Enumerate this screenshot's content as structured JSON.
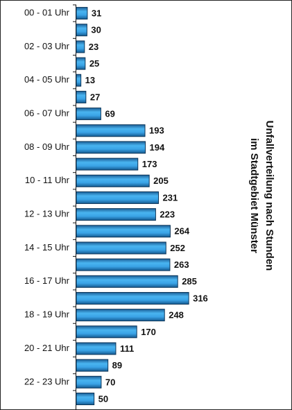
{
  "chart_data": {
    "type": "hbar",
    "title": "Unfallverteilung nach Stunden",
    "subtitle": "im Stadtgebiet Münster",
    "categories": [
      "00 - 01 Uhr",
      null,
      "02 - 03 Uhr",
      null,
      "04 - 05 Uhr",
      null,
      "06 - 07 Uhr",
      null,
      "08 - 09 Uhr",
      null,
      "10 - 11 Uhr",
      null,
      "12 - 13 Uhr",
      null,
      "14 - 15 Uhr",
      null,
      "16 - 17 Uhr",
      null,
      "18 - 19 Uhr",
      null,
      "20 - 21 Uhr",
      null,
      "22 - 23 Uhr",
      null
    ],
    "values": [
      31,
      30,
      23,
      25,
      13,
      27,
      69,
      193,
      194,
      173,
      205,
      231,
      223,
      264,
      252,
      263,
      285,
      316,
      248,
      170,
      111,
      89,
      70,
      50
    ],
    "color": "#2f9ae0"
  }
}
